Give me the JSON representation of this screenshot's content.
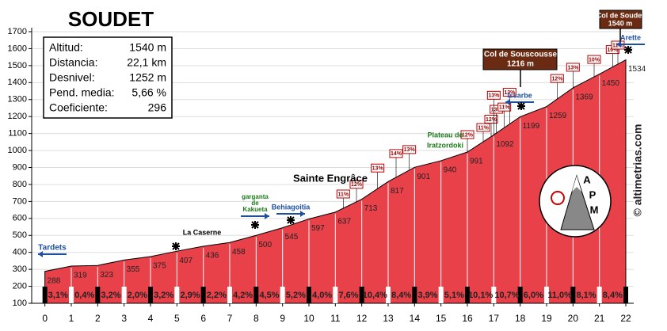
{
  "chart_data": {
    "type": "area",
    "title": "SOUDET",
    "color": "#e8414a",
    "x": [
      0,
      1,
      2,
      3,
      4,
      5,
      6,
      7,
      8,
      9,
      10,
      11,
      12,
      13,
      14,
      15,
      16,
      17,
      18,
      19,
      20,
      21,
      22
    ],
    "values": [
      288,
      319,
      323,
      355,
      375,
      407,
      436,
      458,
      500,
      545,
      597,
      637,
      713,
      817,
      901,
      940,
      991,
      1092,
      1199,
      1259,
      1369,
      1450,
      1534
    ],
    "xlim": [
      -0.5,
      22.3
    ],
    "xticks": [
      0,
      1,
      2,
      3,
      4,
      5,
      6,
      7,
      8,
      9,
      10,
      11,
      12,
      13,
      14,
      15,
      16,
      17,
      18,
      19,
      20,
      21,
      22
    ],
    "ylim": [
      100,
      1700
    ],
    "yticks": [
      100,
      200,
      300,
      400,
      500,
      600,
      700,
      800,
      900,
      1000,
      1100,
      1200,
      1300,
      1400,
      1500,
      1600,
      1700
    ],
    "grid": true,
    "gradients": {
      "values": [
        3.1,
        0.4,
        3.2,
        2.0,
        3.2,
        2.9,
        2.2,
        4.2,
        4.5,
        5.2,
        4.0,
        7.6,
        10.4,
        8.4,
        3.9,
        5.1,
        10.1,
        10.7,
        6.0,
        11.0,
        8.1,
        8.4
      ],
      "value_labels": [
        "3,1%",
        "0,4%",
        "3,2%",
        "2,0%",
        "3,2%",
        "2,9%",
        "2,2%",
        "4,2%",
        "4,5%",
        "5,2%",
        "4,0%",
        "7,6%",
        "10,4%",
        "8,4%",
        "3,9%",
        "5,1%",
        "10,1%",
        "10,7%",
        "6,0%",
        "11,0%",
        "8,1%",
        "8,4%"
      ]
    },
    "flags": {
      "values": [
        11,
        12,
        13,
        14,
        13,
        12,
        11,
        12,
        13,
        11,
        13,
        13,
        12,
        13,
        10,
        10,
        12
      ],
      "value_labels": [
        "11%",
        "12%",
        "13%",
        "14%",
        "13%",
        "12%",
        "11%",
        "12%",
        "13%",
        "11%",
        "13%",
        "13%",
        "12%",
        "13%",
        "10%",
        "10%",
        "12%"
      ]
    },
    "info": [
      [
        "Altitud:",
        "1540 m"
      ],
      [
        "Distancia:",
        "22,1 km"
      ],
      [
        "Desnivel:",
        "1252 m"
      ],
      [
        "Pend. media:",
        "5,66 %"
      ],
      [
        "Coeficiente:",
        "296"
      ]
    ],
    "annotations": [
      [
        "Tardets"
      ],
      [
        "La Caserne"
      ],
      [
        "garganta",
        "de",
        "Kakueta"
      ],
      [
        "Behiagoitia"
      ],
      [
        "Sainte Engrâce"
      ],
      [
        "Plateau de",
        "Iratzordoki"
      ],
      [
        "Issarbe"
      ],
      [
        "Col de Souscousse",
        "1216 m"
      ],
      [
        "Col de Soudet",
        "1540 m"
      ],
      [
        "Arette"
      ]
    ],
    "logo": [
      "A",
      "P",
      "M"
    ],
    "credit": "© altimetrias.com"
  }
}
